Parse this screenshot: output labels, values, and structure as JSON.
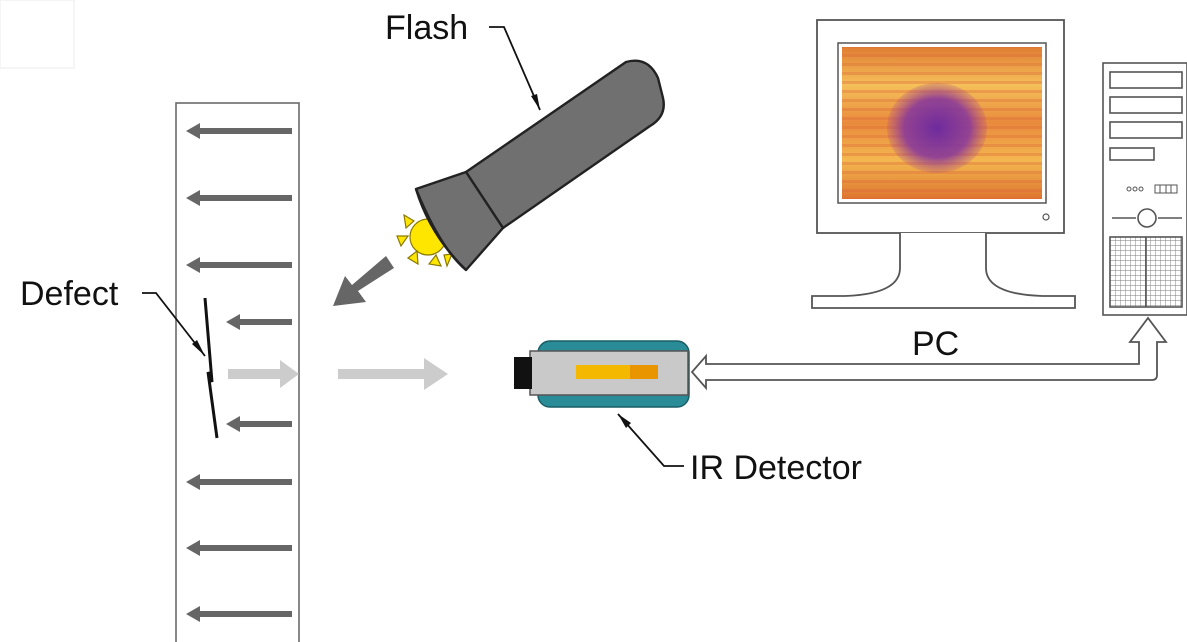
{
  "labels": {
    "flash": "Flash",
    "defect": "Defect",
    "pc": "PC",
    "ir_detector": "IR Detector"
  },
  "icons": {
    "flash": "flashlight-icon",
    "detector": "infrared-camera-icon",
    "monitor": "monitor-icon",
    "tower": "computer-tower-icon"
  },
  "colors": {
    "heat_arrow": "#666666",
    "reflected_arrow": "#cccccc",
    "flashlight_body": "#707070",
    "flash_light": "#ffe600",
    "detector_casing": "#2a8c96",
    "detector_element": "#f4b800",
    "thermal_hot": "#f2a23a",
    "thermal_cold": "#7a2aa0"
  },
  "diagram": {
    "nodes": [
      {
        "id": "specimen",
        "kind": "panel"
      },
      {
        "id": "defect",
        "kind": "crack"
      },
      {
        "id": "flash",
        "kind": "flashlight"
      },
      {
        "id": "ir_detector",
        "kind": "camera"
      },
      {
        "id": "pc",
        "kind": "computer"
      }
    ],
    "edges": [
      {
        "from": "flash",
        "to": "specimen",
        "kind": "heat pulse"
      },
      {
        "from": "specimen",
        "to": "ir_detector",
        "kind": "thermal radiation"
      },
      {
        "from": "ir_detector",
        "to": "pc",
        "kind": "signal"
      }
    ]
  }
}
